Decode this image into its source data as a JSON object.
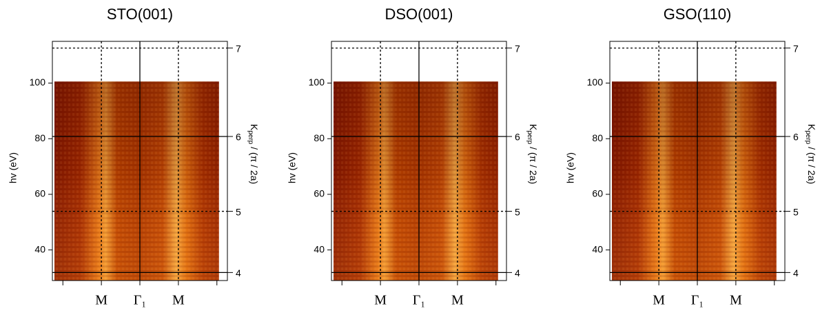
{
  "chart_data": [
    {
      "type": "heatmap",
      "title": "STO(001)",
      "ylabel": "hv (eV)",
      "y2label": {
        "main": "K",
        "sub": "perp",
        "rest": " / (π / 2a)"
      },
      "categories": [
        null,
        "M",
        "Γ₁",
        "M",
        null
      ],
      "ylim": [
        29,
        115
      ],
      "yticks": [
        40,
        60,
        80,
        100
      ],
      "y2lim": [
        3.85,
        7.07
      ],
      "y2ticks": [
        4,
        5,
        6,
        7
      ],
      "y2scale": "square"
    },
    {
      "type": "heatmap",
      "title": "DSO(001)",
      "ylabel": "hv (eV)",
      "y2label": {
        "main": "K",
        "sub": "perp",
        "rest": " / (π / 2a)"
      },
      "categories": [
        null,
        "M",
        "Γ₁",
        "M",
        null
      ],
      "ylim": [
        29,
        115
      ],
      "yticks": [
        40,
        60,
        80,
        100
      ],
      "y2lim": [
        3.85,
        7.07
      ],
      "y2ticks": [
        4,
        5,
        6,
        7
      ],
      "y2scale": "square"
    },
    {
      "type": "heatmap",
      "title": "GSO(110)",
      "ylabel": "hv (eV)",
      "y2label": {
        "main": "K",
        "sub": "perp",
        "rest": " / (π / 2a)"
      },
      "categories": [
        null,
        "M",
        "Γ₁",
        "M",
        null
      ],
      "ylim": [
        29,
        115
      ],
      "yticks": [
        40,
        60,
        80,
        100
      ],
      "y2lim": [
        3.85,
        7.07
      ],
      "y2ticks": [
        4,
        5,
        6,
        7
      ],
      "y2scale": "square"
    }
  ]
}
